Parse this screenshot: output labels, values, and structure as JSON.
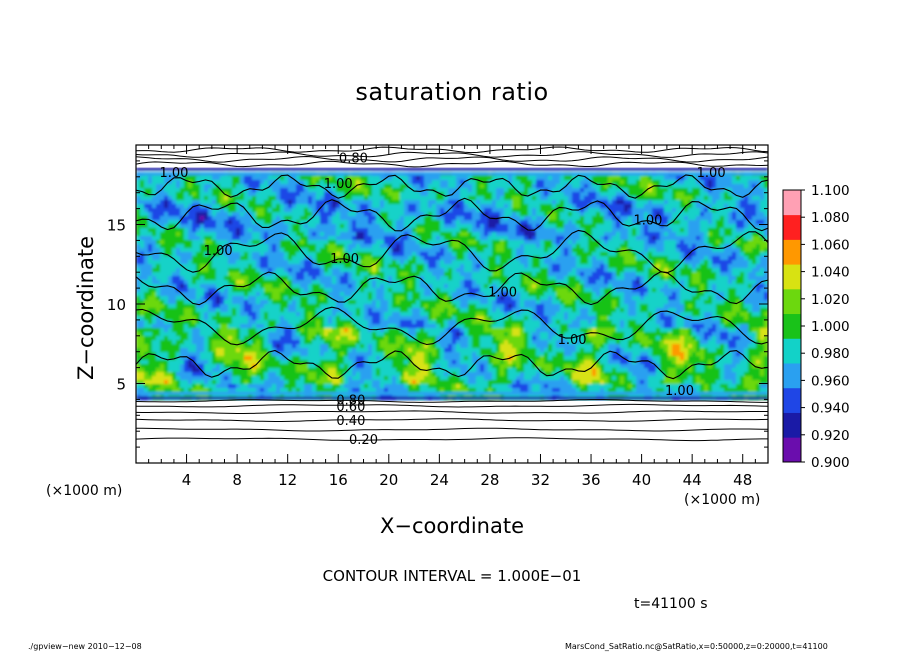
{
  "chart_data": {
    "type": "heatmap",
    "title": "saturation ratio",
    "xlabel": "X−coordinate",
    "ylabel": "Z−coordinate",
    "x_unit_label": "(×1000 m)",
    "y_unit_label": "(×1000 m)",
    "xlim": [
      0,
      50
    ],
    "ylim": [
      0,
      20
    ],
    "x_ticks": [
      4,
      8,
      12,
      16,
      20,
      24,
      28,
      32,
      36,
      40,
      44,
      48
    ],
    "y_ticks": [
      5,
      10,
      15
    ],
    "colorbar": {
      "levels": [
        "0.900",
        "0.920",
        "0.940",
        "0.960",
        "0.980",
        "1.000",
        "1.020",
        "1.040",
        "1.060",
        "1.080",
        "1.100"
      ],
      "colors": [
        "#6a0dad",
        "#1a1aa6",
        "#1f46e6",
        "#2aa0f0",
        "#12d2c8",
        "#19c219",
        "#6cd80e",
        "#d8e212",
        "#ff9800",
        "#ff2020",
        "#ffa0b4"
      ]
    },
    "contour_labels": [
      {
        "text": "0.20",
        "x": 18.0,
        "z": 1.5
      },
      {
        "text": "0.40",
        "x": 17.0,
        "z": 2.7
      },
      {
        "text": "0.60",
        "x": 17.0,
        "z": 3.6
      },
      {
        "text": "0.80",
        "x": 17.0,
        "z": 4.0
      },
      {
        "text": "0.80",
        "x": 17.2,
        "z": 19.2
      },
      {
        "text": "1.00",
        "x": 3.0,
        "z": 18.3
      },
      {
        "text": "1.00",
        "x": 16.0,
        "z": 17.6
      },
      {
        "text": "1.00",
        "x": 45.5,
        "z": 18.3
      },
      {
        "text": "1.00",
        "x": 6.5,
        "z": 13.4
      },
      {
        "text": "1.00",
        "x": 16.5,
        "z": 12.9
      },
      {
        "text": "1.00",
        "x": 29.0,
        "z": 10.8
      },
      {
        "text": "1.00",
        "x": 40.5,
        "z": 15.3
      },
      {
        "text": "1.00",
        "x": 34.5,
        "z": 7.8
      },
      {
        "text": "1.00",
        "x": 43.0,
        "z": 4.6
      }
    ],
    "contour_interval": "CONTOUR INTERVAL = 1.000E−01",
    "time": "t=41100 s"
  },
  "footer": {
    "left": "./gpview−new   2010−12−08",
    "right": "MarsCond_SatRatio.nc@SatRatio,x=0:50000,z=0:20000,t=41100"
  }
}
